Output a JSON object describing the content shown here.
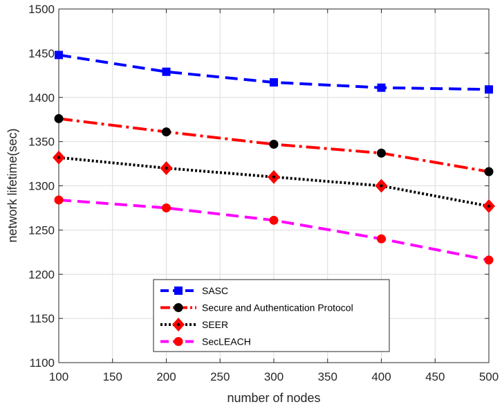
{
  "chart_data": {
    "type": "line",
    "title": "",
    "xlabel": "number of nodes",
    "ylabel": "network lifetime(sec)",
    "xlim": [
      100,
      500
    ],
    "ylim": [
      1100,
      1500
    ],
    "xticks": [
      100,
      150,
      200,
      250,
      300,
      350,
      400,
      450,
      500
    ],
    "yticks": [
      1100,
      1150,
      1200,
      1250,
      1300,
      1350,
      1400,
      1450,
      1500
    ],
    "grid": true,
    "legend_position": "bottom-center",
    "x": [
      100,
      200,
      300,
      400,
      500
    ],
    "series": [
      {
        "name": "SASC",
        "values": [
          1448,
          1429,
          1417,
          1411,
          1409
        ],
        "color": "#0000ff",
        "line": "dashed",
        "marker": "square"
      },
      {
        "name": "Secure and Authentication Protocol",
        "values": [
          1376,
          1361,
          1347,
          1337,
          1316
        ],
        "color": "#ff0000",
        "line": "dash-dot",
        "marker": "circle-black"
      },
      {
        "name": "SEER",
        "values": [
          1332,
          1320,
          1310,
          1300,
          1277
        ],
        "color": "#000000",
        "line": "dotted",
        "marker": "diamond-red"
      },
      {
        "name": "SecLEACH",
        "values": [
          1284,
          1275,
          1261,
          1240,
          1216
        ],
        "color": "#ff00ff",
        "line": "dashed",
        "marker": "circle-red"
      }
    ]
  }
}
